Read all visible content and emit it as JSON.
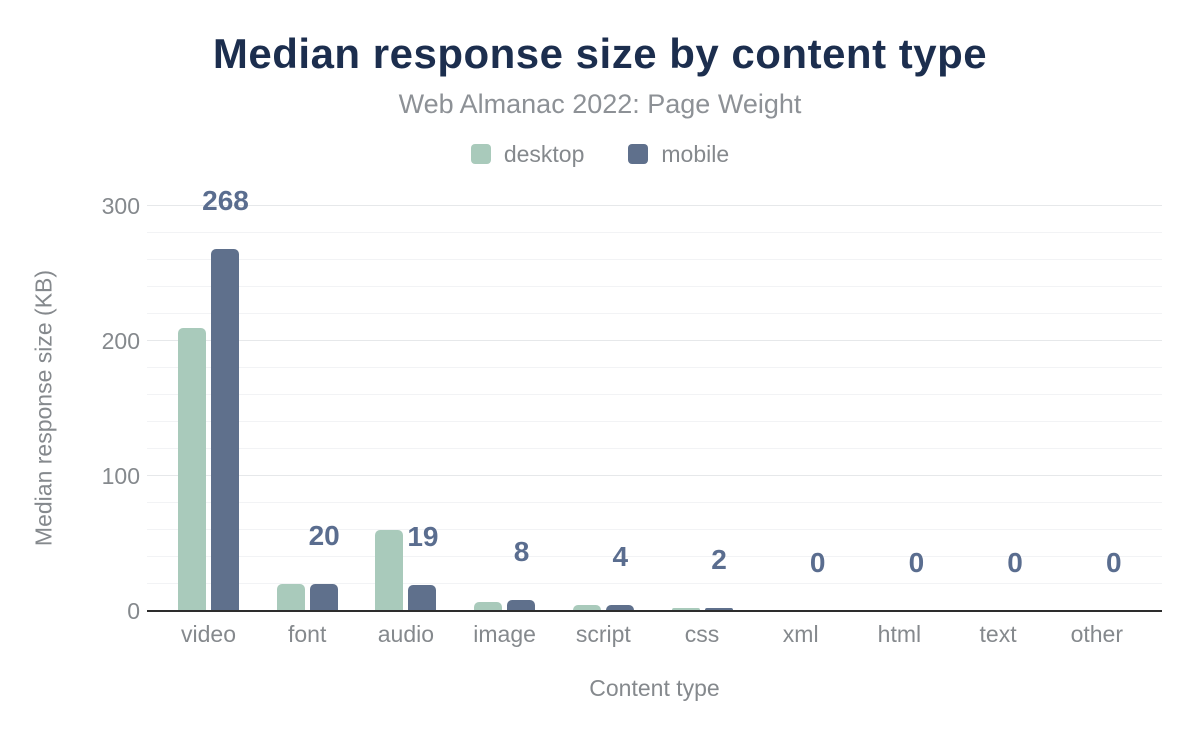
{
  "chart_data": {
    "type": "bar",
    "title": "Median response size by content type",
    "subtitle": "Web Almanac 2022: Page Weight",
    "xlabel": "Content type",
    "ylabel": "Median response size (KB)",
    "categories": [
      "video",
      "font",
      "audio",
      "image",
      "script",
      "css",
      "xml",
      "html",
      "text",
      "other"
    ],
    "series": [
      {
        "name": "desktop",
        "color": "#a9cabb",
        "values": [
          209,
          20,
          60,
          6,
          4,
          2,
          0,
          0,
          0,
          0
        ]
      },
      {
        "name": "mobile",
        "color": "#5f708c",
        "values": [
          268,
          20,
          19,
          8,
          4,
          2,
          0,
          0,
          0,
          0
        ]
      }
    ],
    "value_labels": [
      "268",
      "20",
      "19",
      "8",
      "4",
      "2",
      "0",
      "0",
      "0",
      "0"
    ],
    "value_label_series": "mobile",
    "yticks": [
      0,
      100,
      200,
      300
    ],
    "ylim": [
      0,
      300
    ],
    "minor_grid_step": 20,
    "grid": "on",
    "legend_position": "top",
    "colors": {
      "title": "#1c2e4e",
      "subtitle": "#8d9196",
      "axis_text": "#85898d",
      "annotation": "#5a6d8f",
      "axis_line": "#2d2d2d"
    }
  }
}
